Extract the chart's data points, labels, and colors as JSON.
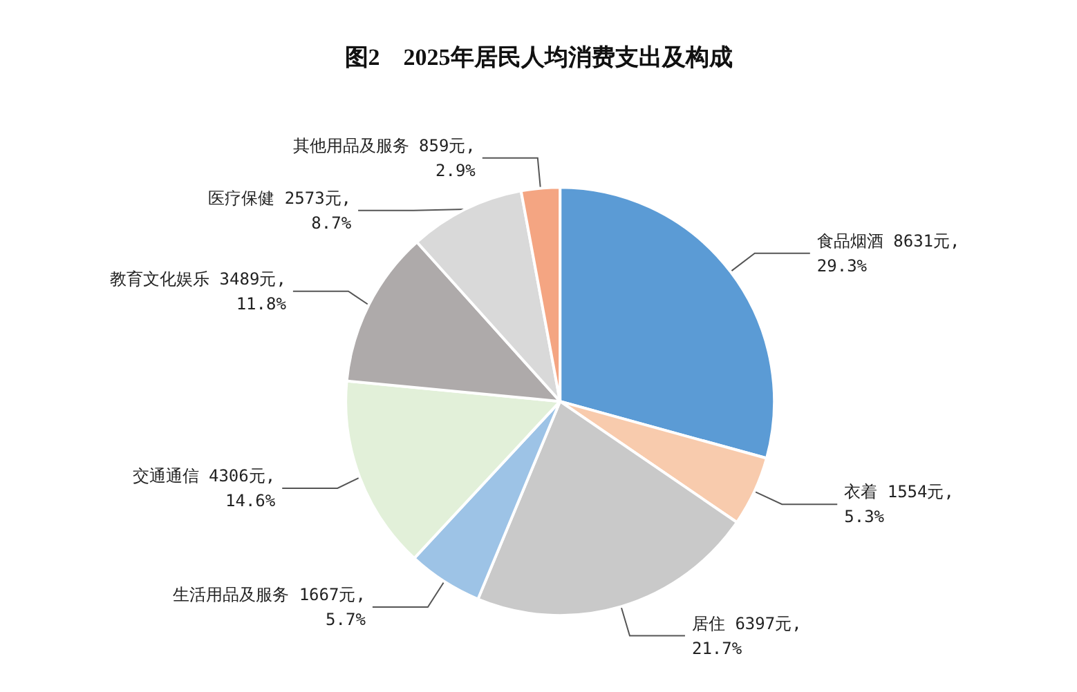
{
  "chart_data": {
    "type": "pie",
    "title": "图2　2025年居民人均消费支出及构成",
    "categories": [
      "食品烟酒",
      "衣着",
      "居住",
      "生活用品及服务",
      "交通通信",
      "教育文化娱乐",
      "医疗保健",
      "其他用品及服务"
    ],
    "values": [
      8631,
      1554,
      6397,
      1667,
      4306,
      3489,
      2573,
      859
    ],
    "value_labels": [
      "8631元,\n29.3%",
      "1554元,\n5.3%",
      "6397元,\n21.7%",
      "1667元,\n5.7%",
      "4306元,\n14.6%",
      "3489元,\n11.8%",
      "2573元,\n8.7%",
      "859元,\n2.9%"
    ],
    "colors": [
      "#5b9bd5",
      "#f8cbad",
      "#c9c9c9",
      "#9dc3e6",
      "#e2f0d9",
      "#aeaaaa",
      "#d9d9d9",
      "#f4a582"
    ],
    "legend": false
  }
}
